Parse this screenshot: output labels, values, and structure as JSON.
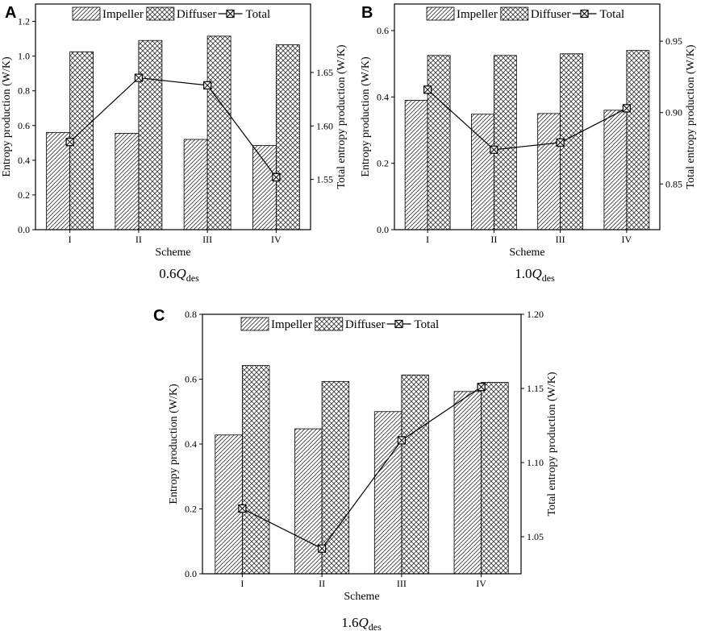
{
  "figure": {
    "colors": {
      "ink": "#000000",
      "fill": "#ffffff"
    }
  },
  "chart_data": [
    {
      "panel_label": "A",
      "type": "bar",
      "caption": {
        "prefix": "0.6",
        "symbol": "Q",
        "sub": "des"
      },
      "categories": [
        "I",
        "II",
        "III",
        "IV"
      ],
      "xlabel": "Scheme",
      "ylabel": "Entropy production (W/K)",
      "y2label": "Total entropy production (W/K)",
      "ylim": [
        0,
        1.3
      ],
      "yticks": [
        0.0,
        0.2,
        0.4,
        0.6,
        0.8,
        1.0,
        1.2
      ],
      "ytick_labels": [
        "0.0",
        "0.2",
        "0.4",
        "0.6",
        "0.8",
        "1.0",
        "1.2"
      ],
      "y2lim": [
        1.503,
        1.714
      ],
      "y2ticks": [
        1.55,
        1.6,
        1.65
      ],
      "y2tick_labels": [
        "1.55",
        "1.60",
        "1.65"
      ],
      "series": [
        {
          "name": "Impeller",
          "kind": "bar",
          "pattern": "diag",
          "values": [
            0.56,
            0.555,
            0.52,
            0.485
          ]
        },
        {
          "name": "Diffuser",
          "kind": "bar",
          "pattern": "cross",
          "values": [
            1.025,
            1.09,
            1.115,
            1.065
          ]
        },
        {
          "name": "Total",
          "kind": "line",
          "axis": "right",
          "values": [
            1.585,
            1.645,
            1.638,
            1.552
          ]
        }
      ],
      "legend": "top"
    },
    {
      "panel_label": "B",
      "type": "bar",
      "caption": {
        "prefix": "1.0",
        "symbol": "Q",
        "sub": "des"
      },
      "categories": [
        "I",
        "II",
        "III",
        "IV"
      ],
      "xlabel": "Scheme",
      "ylabel": "Entropy production (W/K)",
      "y2label": "Total entropy production (W/K)",
      "ylim": [
        0,
        0.68
      ],
      "yticks": [
        0.0,
        0.2,
        0.4,
        0.6
      ],
      "ytick_labels": [
        "0.0",
        "0.2",
        "0.4",
        "0.6"
      ],
      "y2lim": [
        0.818,
        0.976
      ],
      "y2ticks": [
        0.85,
        0.9,
        0.95
      ],
      "y2tick_labels": [
        "0.85",
        "0.90",
        "0.95"
      ],
      "series": [
        {
          "name": "Impeller",
          "kind": "bar",
          "pattern": "diag",
          "values": [
            0.39,
            0.348,
            0.35,
            0.36
          ]
        },
        {
          "name": "Diffuser",
          "kind": "bar",
          "pattern": "cross",
          "values": [
            0.525,
            0.525,
            0.53,
            0.54
          ]
        },
        {
          "name": "Total",
          "kind": "line",
          "axis": "right",
          "values": [
            0.916,
            0.874,
            0.879,
            0.903
          ]
        }
      ],
      "legend": "top"
    },
    {
      "panel_label": "C",
      "type": "bar",
      "caption": {
        "prefix": "1.6",
        "symbol": "Q",
        "sub": "des"
      },
      "categories": [
        "I",
        "II",
        "III",
        "IV"
      ],
      "xlabel": "Scheme",
      "ylabel": "Entropy production (W/K)",
      "y2label": "Total entropy production (W/K)",
      "ylim": [
        0,
        0.8
      ],
      "yticks": [
        0.0,
        0.2,
        0.4,
        0.6,
        0.8
      ],
      "ytick_labels": [
        "0.0",
        "0.2",
        "0.4",
        "0.6",
        "0.8"
      ],
      "y2lim": [
        1.025,
        1.2
      ],
      "y2ticks": [
        1.05,
        1.1,
        1.15,
        1.2
      ],
      "y2tick_labels": [
        "1.05",
        "1.10",
        "1.15",
        "1.20"
      ],
      "series": [
        {
          "name": "Impeller",
          "kind": "bar",
          "pattern": "diag",
          "values": [
            0.428,
            0.447,
            0.5,
            0.562
          ]
        },
        {
          "name": "Diffuser",
          "kind": "bar",
          "pattern": "cross",
          "values": [
            0.642,
            0.593,
            0.613,
            0.59
          ]
        },
        {
          "name": "Total",
          "kind": "line",
          "axis": "right",
          "values": [
            1.069,
            1.042,
            1.115,
            1.151
          ]
        }
      ],
      "legend": "top"
    }
  ]
}
